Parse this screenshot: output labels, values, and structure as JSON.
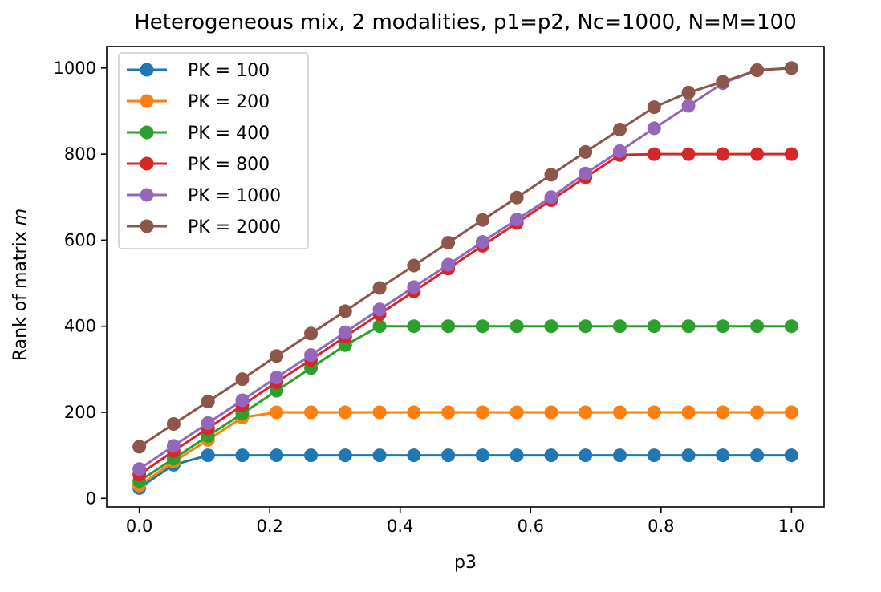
{
  "chart_data": {
    "type": "line",
    "title": "Heterogeneous mix, 2 modalities, p1=p2, Nc=1000, N=M=100",
    "xlabel": "p3",
    "ylabel_prefix": "Rank of matrix ",
    "ylabel_var": "m",
    "xlim": [
      -0.05,
      1.05
    ],
    "ylim": [
      -20,
      1050
    ],
    "xticks": [
      0.0,
      0.2,
      0.4,
      0.6,
      0.8,
      1.0
    ],
    "xtick_labels": [
      "0.0",
      "0.2",
      "0.4",
      "0.6",
      "0.8",
      "1.0"
    ],
    "yticks": [
      0,
      200,
      400,
      600,
      800,
      1000
    ],
    "ytick_labels": [
      "0",
      "200",
      "400",
      "600",
      "800",
      "1000"
    ],
    "grid": false,
    "legend_position": "top-left",
    "x": [
      0.0,
      0.0526,
      0.1053,
      0.1579,
      0.2105,
      0.2632,
      0.3158,
      0.3684,
      0.4211,
      0.4737,
      0.5263,
      0.5789,
      0.6316,
      0.6842,
      0.7368,
      0.7895,
      0.8421,
      0.8947,
      0.9474,
      1.0
    ],
    "series": [
      {
        "name": "PK = 100",
        "color": "#1f77b4",
        "values": [
          24,
          78,
          100,
          100,
          100,
          100,
          100,
          100,
          100,
          100,
          100,
          100,
          100,
          100,
          100,
          100,
          100,
          100,
          100,
          100
        ]
      },
      {
        "name": "PK = 200",
        "color": "#ff7f0e",
        "values": [
          30,
          85,
          136,
          188,
          200,
          200,
          200,
          200,
          200,
          200,
          200,
          200,
          200,
          200,
          200,
          200,
          200,
          200,
          200,
          200
        ]
      },
      {
        "name": "PK = 400",
        "color": "#2ca02c",
        "values": [
          40,
          92,
          145,
          197,
          250,
          303,
          356,
          400,
          400,
          400,
          400,
          400,
          400,
          400,
          400,
          400,
          400,
          400,
          400,
          400
        ]
      },
      {
        "name": "PK = 800",
        "color": "#d62728",
        "values": [
          55,
          110,
          163,
          216,
          270,
          322,
          376,
          428,
          481,
          534,
          587,
          640,
          693,
          746,
          798,
          800,
          800,
          800,
          800,
          800
        ]
      },
      {
        "name": "PK = 1000",
        "color": "#9467bd",
        "values": [
          68,
          122,
          175,
          228,
          281,
          333,
          386,
          439,
          491,
          543,
          596,
          648,
          700,
          755,
          807,
          860,
          912,
          965,
          995,
          1000
        ]
      },
      {
        "name": "PK = 2000",
        "color": "#8c564b",
        "values": [
          120,
          173,
          225,
          277,
          331,
          383,
          435,
          489,
          541,
          594,
          647,
          699,
          752,
          805,
          857,
          909,
          943,
          968,
          995,
          1000
        ]
      }
    ]
  }
}
